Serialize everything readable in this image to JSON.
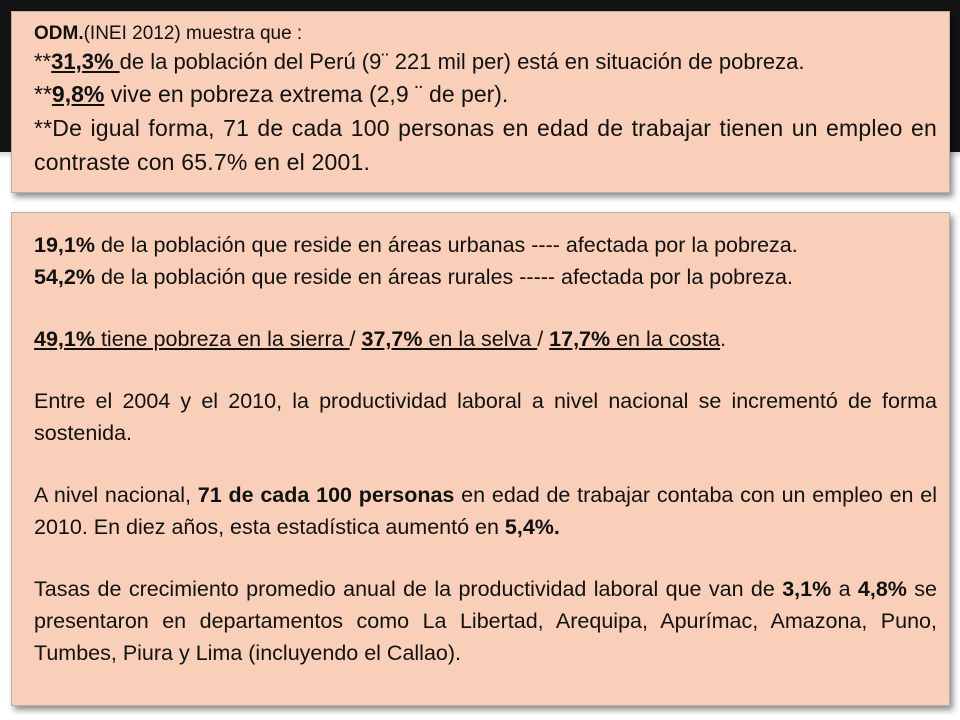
{
  "box1": {
    "l1_bold": "ODM.",
    "l1_rest": "(INEI 2012) muestra que :",
    "l2_pre": "**",
    "l2_u": "31,3% ",
    "l2_rest": "de la población del Perú (9¨ 221 mil per) está en situación de pobreza.",
    "l3_pre": "**",
    "l3_u": "9,8%",
    "l3_rest": " vive en pobreza extrema (2,9 ¨ de per).",
    "l4": "**De igual forma, 71 de cada 100 personas en edad de trabajar tienen un empleo en contraste con 65.7% en el 2001."
  },
  "box2": {
    "p1_b": "19,1%",
    "p1_rest": " de la población que reside en áreas urbanas  ---- afectada por la pobreza.",
    "p2_b": "54,2%",
    "p2_rest": "  de la población que reside en áreas rurales  ----- afectada por la pobreza.",
    "p3_a_b": "49,1%",
    "p3_a_u": " tiene pobreza en la sierra ",
    "p3_sep1": "/ ",
    "p3_b_b": "37,7%",
    "p3_b_u": "  en la selva ",
    "p3_sep2": "/ ",
    "p3_c_b": "17,7%",
    "p3_c_u": " en la costa",
    "p3_end": ".",
    "p4": "Entre el 2004 y el 2010, la productividad laboral a nivel nacional se incrementó de forma sostenida.",
    "p5_a": "A nivel nacional, ",
    "p5_b": "71 de cada 100 personas",
    "p5_c": " en edad de trabajar contaba con un empleo en el 2010. En diez años, esta estadística aumentó en ",
    "p5_d": "5,4%.",
    "p6_a": "Tasas de crecimiento promedio anual de la productividad laboral que van de ",
    "p6_b": "3,1%",
    "p6_c": " a ",
    "p6_d": "4,8%",
    "p6_e": " se presentaron en departamentos como La Libertad, Arequipa, Apurímac, Amazona, Puno, Tumbes, Piura y Lima (incluyendo el Callao)."
  }
}
